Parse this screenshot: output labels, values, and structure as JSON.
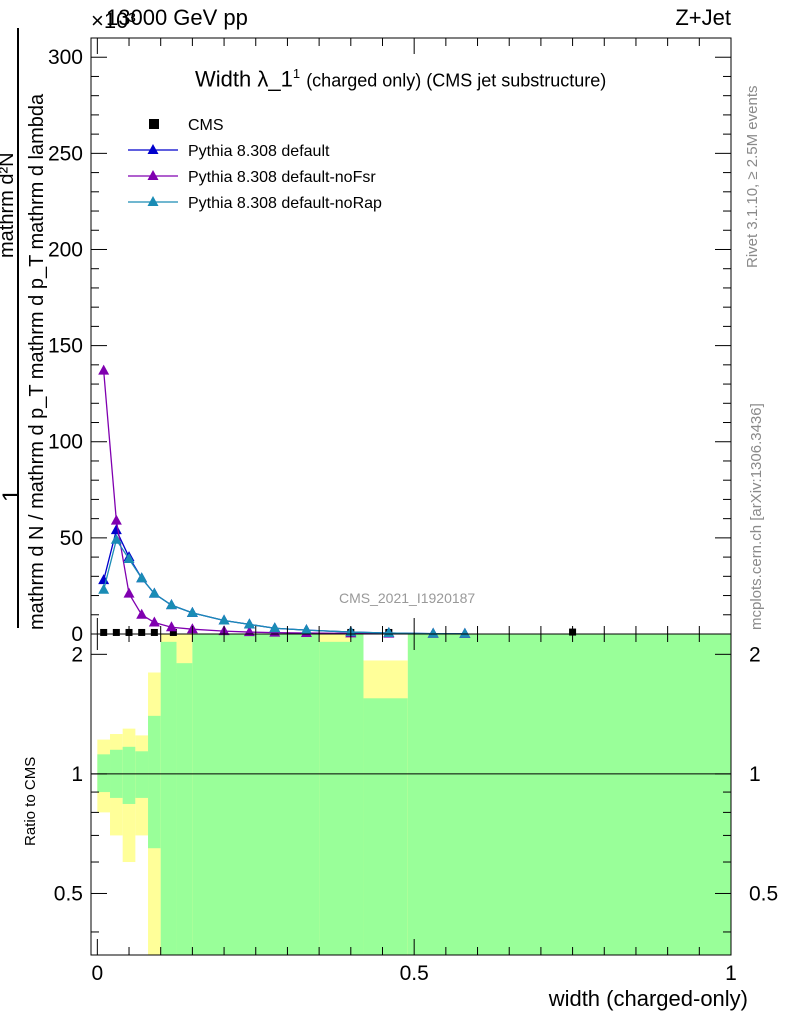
{
  "header": {
    "energy": "13000 GeV pp",
    "process": "Z+Jet",
    "exponent": "×10³"
  },
  "side": {
    "rivet": "Rivet 3.1.10, ≥ 2.5M events",
    "mcplots": "mcplots.cern.ch [arXiv:1306.3436]"
  },
  "watermark": "CMS_2021_I1920187",
  "chart_data": [
    {
      "type": "line",
      "title": "Width λ_1¹ (charged only) (CMS jet substructure)",
      "title_main": "Width λ_1",
      "title_sup": "1",
      "title_rest": "(charged only) (CMS jet substructure)",
      "ylabel": {
        "numerator": "mathrm d²N",
        "denominator": "mathrm d N / mathrm d p_T mathrm d p_T mathrm d lambda",
        "prefix": "1"
      },
      "ylim": [
        0,
        310
      ],
      "yticks": [
        0,
        50,
        100,
        150,
        200,
        250,
        300
      ],
      "xlim": [
        -0.01,
        1.0
      ],
      "legend_position": "top-left",
      "legend": [
        "CMS",
        "Pythia 8.308 default",
        "Pythia 8.308 default-noFsr",
        "Pythia 8.308 default-noRap"
      ],
      "series": [
        {
          "name": "CMS",
          "color": "#000000",
          "marker": "square",
          "x": [
            0.01,
            0.03,
            0.05,
            0.07,
            0.09,
            0.12,
            0.4,
            0.46,
            0.75
          ],
          "y": [
            0.8,
            0.8,
            0.8,
            0.8,
            0.8,
            0.8,
            0.8,
            0.8,
            1.0
          ]
        },
        {
          "name": "Pythia 8.308 default",
          "color": "#0000cc",
          "marker": "triangle",
          "x": [
            0.01,
            0.03,
            0.05,
            0.07,
            0.09,
            0.117,
            0.15,
            0.2,
            0.24,
            0.28,
            0.33,
            0.4,
            0.46,
            0.53,
            0.58
          ],
          "y": [
            28,
            54,
            40,
            29,
            21,
            15,
            11,
            7,
            5,
            3,
            2,
            1,
            0.5,
            0.2,
            0.1
          ]
        },
        {
          "name": "Pythia 8.308 default-noFsr",
          "color": "#8000b0",
          "marker": "triangle",
          "x": [
            0.01,
            0.03,
            0.05,
            0.07,
            0.09,
            0.117,
            0.15,
            0.2,
            0.24,
            0.28,
            0.33,
            0.4,
            0.46,
            0.53,
            0.58
          ],
          "y": [
            137,
            59,
            21,
            10,
            6,
            3.5,
            2.5,
            1.5,
            1,
            0.7,
            0.5,
            0.3,
            0.2,
            0.1,
            0.05
          ]
        },
        {
          "name": "Pythia 8.308 default-noRap",
          "color": "#1a8cb5",
          "marker": "triangle",
          "x": [
            0.01,
            0.03,
            0.05,
            0.07,
            0.09,
            0.117,
            0.15,
            0.2,
            0.24,
            0.28,
            0.33,
            0.4,
            0.46,
            0.53,
            0.58
          ],
          "y": [
            23,
            49,
            39,
            29,
            21,
            15,
            11,
            7,
            5,
            3,
            2,
            1,
            0.5,
            0.2,
            0.1
          ]
        }
      ]
    },
    {
      "type": "area",
      "ylabel": "Ratio to CMS",
      "xlabel": "width (charged-only)",
      "xlim": [
        -0.01,
        1.0
      ],
      "ylim": [
        0.35,
        2.25
      ],
      "xticks": [
        0,
        0.5,
        1
      ],
      "xtick_labels": [
        "0",
        "0.5",
        "1"
      ],
      "yticks": [
        0.5,
        1,
        2
      ],
      "ytick_labels": [
        "0.5",
        "1",
        "2"
      ],
      "reference_line": 1,
      "band_colors": {
        "stat": "#99ff99",
        "syst": "#ffff99"
      },
      "bands": [
        {
          "x0": 0.0,
          "x1": 0.02,
          "g_lo": 0.9,
          "g_hi": 1.12,
          "y_lo": 0.8,
          "y_hi": 1.22
        },
        {
          "x0": 0.02,
          "x1": 0.04,
          "g_lo": 0.87,
          "g_hi": 1.15,
          "y_lo": 0.7,
          "y_hi": 1.26
        },
        {
          "x0": 0.04,
          "x1": 0.06,
          "g_lo": 0.84,
          "g_hi": 1.17,
          "y_lo": 0.6,
          "y_hi": 1.3
        },
        {
          "x0": 0.06,
          "x1": 0.08,
          "g_lo": 0.87,
          "g_hi": 1.14,
          "y_lo": 0.7,
          "y_hi": 1.25
        },
        {
          "x0": 0.08,
          "x1": 0.1,
          "g_lo": 0.65,
          "g_hi": 1.4,
          "y_lo": 0.35,
          "y_hi": 1.8
        },
        {
          "x0": 0.1,
          "x1": 0.125,
          "g_lo": 0.35,
          "g_hi": 2.15,
          "y_lo": 0.35,
          "y_hi": 2.25
        },
        {
          "x0": 0.125,
          "x1": 0.15,
          "g_lo": 0.35,
          "g_hi": 1.9,
          "y_lo": 0.35,
          "y_hi": 2.25
        },
        {
          "x0": 0.15,
          "x1": 0.35,
          "g_lo": 0.35,
          "g_hi": 2.25,
          "y_lo": 0.35,
          "y_hi": 2.25
        },
        {
          "x0": 0.35,
          "x1": 0.42,
          "g_lo": 0.35,
          "g_hi": 2.25,
          "y_lo": 0.35,
          "y_hi": 2.25
        },
        {
          "x0": 0.42,
          "x1": 0.49,
          "g_lo": 0.35,
          "g_hi": 1.55,
          "y_lo": 0.35,
          "y_hi": 1.93
        },
        {
          "x0": 0.49,
          "x1": 1.0,
          "g_lo": 0.35,
          "g_hi": 2.25,
          "y_lo": 0.35,
          "y_hi": 2.25
        }
      ],
      "yellow_patches": [
        {
          "x0": 0.35,
          "x1": 0.4,
          "y_lo": 2.15,
          "y_hi": 2.25
        }
      ]
    }
  ]
}
